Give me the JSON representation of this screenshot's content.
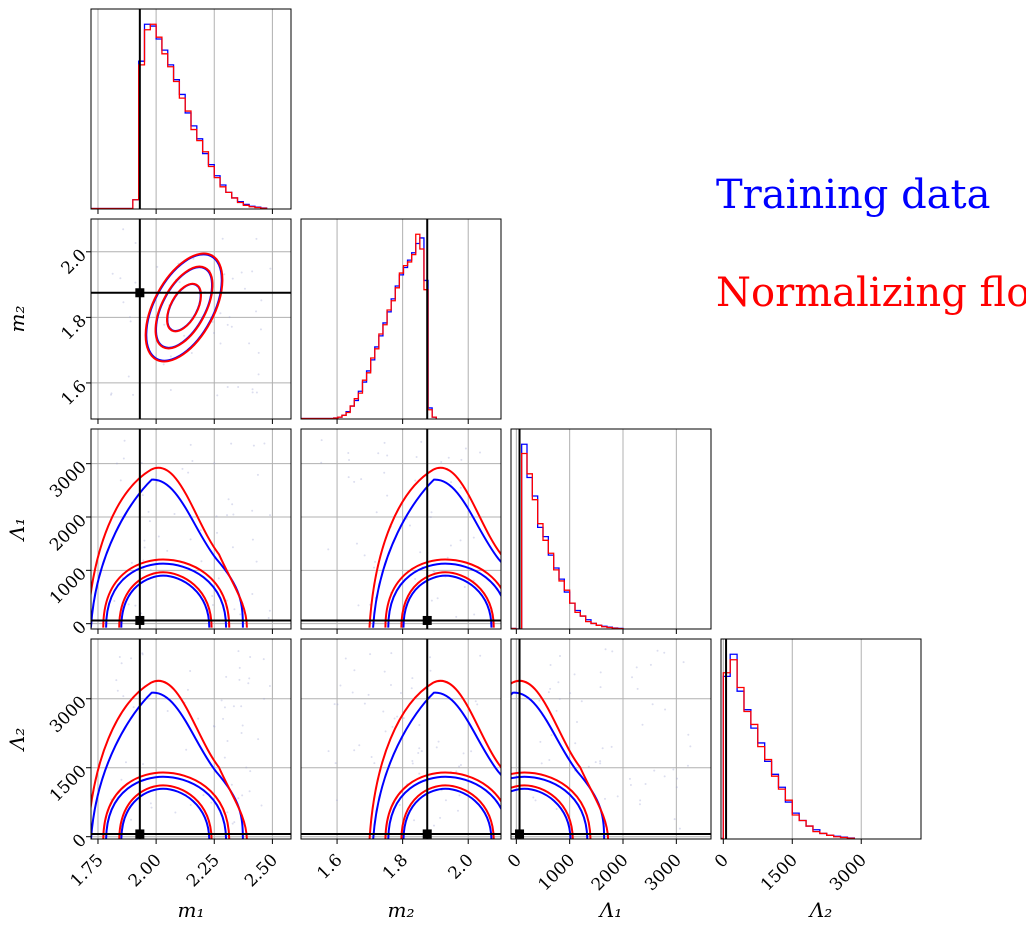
{
  "legend": {
    "training_label": "Training data",
    "flow_label": "Normalizing flow",
    "training_color": "#0000ff",
    "flow_color": "#ff0000"
  },
  "chart_data": {
    "type": "corner",
    "params": [
      {
        "name": "m1",
        "label": "m₁",
        "range": [
          1.72,
          2.58
        ],
        "ticks": [
          1.75,
          2.0,
          2.25,
          2.5
        ],
        "tick_labels": [
          "1.75",
          "2.00",
          "2.25",
          "2.50"
        ],
        "truth": 1.93
      },
      {
        "name": "m2",
        "label": "m₂",
        "range": [
          1.49,
          2.1
        ],
        "ticks": [
          1.6,
          1.8,
          2.0
        ],
        "tick_labels": [
          "1.6",
          "1.8",
          "2.0"
        ],
        "truth": 1.875
      },
      {
        "name": "L1",
        "label": "Λ₁",
        "range": [
          -100,
          3650
        ],
        "ticks": [
          0,
          1000,
          2000,
          3000
        ],
        "tick_labels": [
          "0",
          "1000",
          "2000",
          "3000"
        ],
        "truth": 60
      },
      {
        "name": "L2",
        "label": "Λ₂",
        "range": [
          -50,
          4300
        ],
        "ticks": [
          0,
          1500,
          3000
        ],
        "tick_labels": [
          "0",
          "1500",
          "3000"
        ],
        "truth": 60
      }
    ],
    "histograms": [
      {
        "param": "m1",
        "bin_edges_start": 1.9,
        "bin_width": 0.025,
        "training": [
          0.05,
          0.8,
          1.0,
          0.99,
          0.92,
          0.86,
          0.78,
          0.7,
          0.62,
          0.52,
          0.45,
          0.38,
          0.3,
          0.24,
          0.18,
          0.13,
          0.09,
          0.06,
          0.04,
          0.025,
          0.015,
          0.01,
          0.005
        ],
        "flow": [
          0.05,
          0.78,
          0.97,
          1.0,
          0.93,
          0.84,
          0.77,
          0.69,
          0.6,
          0.53,
          0.43,
          0.37,
          0.31,
          0.23,
          0.17,
          0.12,
          0.09,
          0.06,
          0.035,
          0.02,
          0.012,
          0.008,
          0.004
        ]
      },
      {
        "param": "m2",
        "bin_edges_start": 1.59,
        "bin_width": 0.0125,
        "training": [
          0.005,
          0.01,
          0.02,
          0.04,
          0.07,
          0.1,
          0.15,
          0.2,
          0.26,
          0.32,
          0.39,
          0.45,
          0.52,
          0.58,
          0.65,
          0.72,
          0.78,
          0.82,
          0.86,
          0.9,
          0.95,
          0.98,
          0.75,
          0.06,
          0.01
        ],
        "flow": [
          0.005,
          0.01,
          0.02,
          0.035,
          0.07,
          0.11,
          0.14,
          0.21,
          0.25,
          0.33,
          0.38,
          0.46,
          0.51,
          0.59,
          0.64,
          0.71,
          0.79,
          0.83,
          0.85,
          0.89,
          1.0,
          0.92,
          0.7,
          0.05,
          0.01
        ]
      },
      {
        "param": "L1",
        "bin_edges_start": 0,
        "bin_width": 100,
        "training": [
          0.0,
          1.0,
          0.82,
          0.72,
          0.55,
          0.5,
          0.4,
          0.33,
          0.27,
          0.2,
          0.14,
          0.1,
          0.07,
          0.05,
          0.03,
          0.02,
          0.015,
          0.01,
          0.005,
          0.003
        ],
        "flow": [
          0.0,
          0.95,
          0.84,
          0.7,
          0.57,
          0.48,
          0.41,
          0.32,
          0.26,
          0.21,
          0.14,
          0.09,
          0.07,
          0.04,
          0.03,
          0.02,
          0.012,
          0.008,
          0.004,
          0.002
        ]
      },
      {
        "param": "L2",
        "bin_edges_start": 0,
        "bin_width": 150,
        "training": [
          0.88,
          1.0,
          0.8,
          0.7,
          0.6,
          0.52,
          0.42,
          0.35,
          0.28,
          0.2,
          0.14,
          0.1,
          0.07,
          0.05,
          0.03,
          0.02,
          0.015,
          0.01,
          0.005
        ],
        "flow": [
          0.9,
          0.97,
          0.82,
          0.69,
          0.62,
          0.5,
          0.43,
          0.34,
          0.27,
          0.21,
          0.13,
          0.1,
          0.07,
          0.04,
          0.03,
          0.02,
          0.012,
          0.008,
          0.004
        ]
      }
    ],
    "contours": [
      {
        "x": "m1",
        "y": "m2",
        "levels": [
          0.68,
          0.95,
          0.99
        ],
        "ellipse": {
          "cx": 2.12,
          "cy": 1.83,
          "rx": [
            0.11,
            0.19,
            0.25
          ],
          "ry": [
            0.04,
            0.065,
            0.09
          ],
          "angle_deg": -62
        }
      },
      {
        "x": "m1",
        "y": "L1",
        "peak": [
          2.03,
          300
        ],
        "levels": [
          0.68,
          0.95,
          0.99
        ]
      },
      {
        "x": "m1",
        "y": "L2",
        "peak": [
          2.03,
          500
        ],
        "levels": [
          0.68,
          0.95,
          0.99
        ]
      },
      {
        "x": "m2",
        "y": "L1",
        "peak": [
          1.93,
          300
        ],
        "levels": [
          0.68,
          0.95,
          0.99
        ]
      },
      {
        "x": "m2",
        "y": "L2",
        "peak": [
          1.93,
          500
        ],
        "levels": [
          0.68,
          0.95,
          0.99
        ]
      },
      {
        "x": "L1",
        "y": "L2",
        "peak": [
          150,
          300
        ],
        "levels": [
          0.68,
          0.95,
          0.99
        ]
      }
    ],
    "grid": true,
    "legend_position": "right"
  }
}
